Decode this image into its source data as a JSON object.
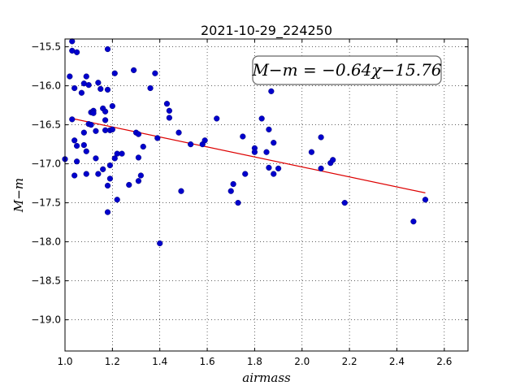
{
  "chart_data": {
    "type": "scatter",
    "title": "2021-10-29_224250",
    "xlabel": "airmass",
    "ylabel": "M−m",
    "xlim": [
      1.0,
      2.7
    ],
    "ylim": [
      -19.4,
      -15.4
    ],
    "y_inverted": true,
    "grid": true,
    "xticks": [
      "1.0",
      "1.2",
      "1.4",
      "1.6",
      "1.8",
      "2.0",
      "2.2",
      "2.4",
      "2.6"
    ],
    "yticks": [
      "−15.5",
      "−16.0",
      "−16.5",
      "−17.0",
      "−17.5",
      "−18.0",
      "−18.5",
      "−19.0"
    ],
    "annotation": "M−m = −0.64χ−15.76",
    "marker_color": "#0000cc",
    "line_color": "#dd0000",
    "fit_line": {
      "slope": -0.64,
      "intercept": -15.76,
      "x_range": [
        1.02,
        2.52
      ]
    },
    "points": [
      {
        "x": 1.0,
        "y": -16.94
      },
      {
        "x": 1.02,
        "y": -15.88
      },
      {
        "x": 1.03,
        "y": -15.43
      },
      {
        "x": 1.03,
        "y": -15.55
      },
      {
        "x": 1.03,
        "y": -16.43
      },
      {
        "x": 1.04,
        "y": -16.03
      },
      {
        "x": 1.04,
        "y": -16.7
      },
      {
        "x": 1.04,
        "y": -17.15
      },
      {
        "x": 1.05,
        "y": -16.77
      },
      {
        "x": 1.05,
        "y": -16.97
      },
      {
        "x": 1.05,
        "y": -15.57
      },
      {
        "x": 1.07,
        "y": -16.09
      },
      {
        "x": 1.08,
        "y": -15.97
      },
      {
        "x": 1.08,
        "y": -16.6
      },
      {
        "x": 1.08,
        "y": -16.76
      },
      {
        "x": 1.09,
        "y": -16.84
      },
      {
        "x": 1.09,
        "y": -17.13
      },
      {
        "x": 1.09,
        "y": -15.88
      },
      {
        "x": 1.1,
        "y": -15.99
      },
      {
        "x": 1.1,
        "y": -16.49
      },
      {
        "x": 1.11,
        "y": -16.5
      },
      {
        "x": 1.11,
        "y": -16.34
      },
      {
        "x": 1.12,
        "y": -16.32
      },
      {
        "x": 1.12,
        "y": -16.35
      },
      {
        "x": 1.13,
        "y": -16.58
      },
      {
        "x": 1.13,
        "y": -16.93
      },
      {
        "x": 1.14,
        "y": -15.96
      },
      {
        "x": 1.14,
        "y": -17.13
      },
      {
        "x": 1.15,
        "y": -16.04
      },
      {
        "x": 1.16,
        "y": -16.29
      },
      {
        "x": 1.16,
        "y": -17.07
      },
      {
        "x": 1.17,
        "y": -16.33
      },
      {
        "x": 1.17,
        "y": -16.44
      },
      {
        "x": 1.17,
        "y": -16.57
      },
      {
        "x": 1.18,
        "y": -15.53
      },
      {
        "x": 1.18,
        "y": -16.05
      },
      {
        "x": 1.18,
        "y": -17.28
      },
      {
        "x": 1.18,
        "y": -17.62
      },
      {
        "x": 1.19,
        "y": -16.57
      },
      {
        "x": 1.19,
        "y": -17.02
      },
      {
        "x": 1.19,
        "y": -17.19
      },
      {
        "x": 1.2,
        "y": -16.26
      },
      {
        "x": 1.2,
        "y": -16.56
      },
      {
        "x": 1.21,
        "y": -16.93
      },
      {
        "x": 1.21,
        "y": -15.84
      },
      {
        "x": 1.22,
        "y": -17.46
      },
      {
        "x": 1.22,
        "y": -16.87
      },
      {
        "x": 1.24,
        "y": -16.87
      },
      {
        "x": 1.27,
        "y": -17.27
      },
      {
        "x": 1.29,
        "y": -15.8
      },
      {
        "x": 1.3,
        "y": -16.6
      },
      {
        "x": 1.31,
        "y": -17.22
      },
      {
        "x": 1.31,
        "y": -16.62
      },
      {
        "x": 1.31,
        "y": -16.92
      },
      {
        "x": 1.32,
        "y": -17.15
      },
      {
        "x": 1.33,
        "y": -16.78
      },
      {
        "x": 1.36,
        "y": -16.03
      },
      {
        "x": 1.38,
        "y": -15.84
      },
      {
        "x": 1.39,
        "y": -16.67
      },
      {
        "x": 1.4,
        "y": -18.02
      },
      {
        "x": 1.43,
        "y": -16.23
      },
      {
        "x": 1.44,
        "y": -16.41
      },
      {
        "x": 1.44,
        "y": -16.32
      },
      {
        "x": 1.48,
        "y": -16.6
      },
      {
        "x": 1.49,
        "y": -17.35
      },
      {
        "x": 1.53,
        "y": -16.75
      },
      {
        "x": 1.58,
        "y": -16.75
      },
      {
        "x": 1.59,
        "y": -16.7
      },
      {
        "x": 1.64,
        "y": -16.42
      },
      {
        "x": 1.7,
        "y": -17.35
      },
      {
        "x": 1.71,
        "y": -17.26
      },
      {
        "x": 1.73,
        "y": -17.5
      },
      {
        "x": 1.75,
        "y": -16.65
      },
      {
        "x": 1.76,
        "y": -17.13
      },
      {
        "x": 1.8,
        "y": -16.8
      },
      {
        "x": 1.8,
        "y": -16.85
      },
      {
        "x": 1.83,
        "y": -16.42
      },
      {
        "x": 1.85,
        "y": -16.85
      },
      {
        "x": 1.86,
        "y": -16.56
      },
      {
        "x": 1.86,
        "y": -17.05
      },
      {
        "x": 1.87,
        "y": -16.07
      },
      {
        "x": 1.88,
        "y": -16.73
      },
      {
        "x": 1.88,
        "y": -17.13
      },
      {
        "x": 1.9,
        "y": -17.06
      },
      {
        "x": 2.04,
        "y": -16.85
      },
      {
        "x": 2.08,
        "y": -16.66
      },
      {
        "x": 2.08,
        "y": -17.06
      },
      {
        "x": 2.12,
        "y": -16.99
      },
      {
        "x": 2.13,
        "y": -16.95
      },
      {
        "x": 2.18,
        "y": -17.5
      },
      {
        "x": 2.47,
        "y": -17.74
      },
      {
        "x": 2.52,
        "y": -17.46
      }
    ]
  }
}
